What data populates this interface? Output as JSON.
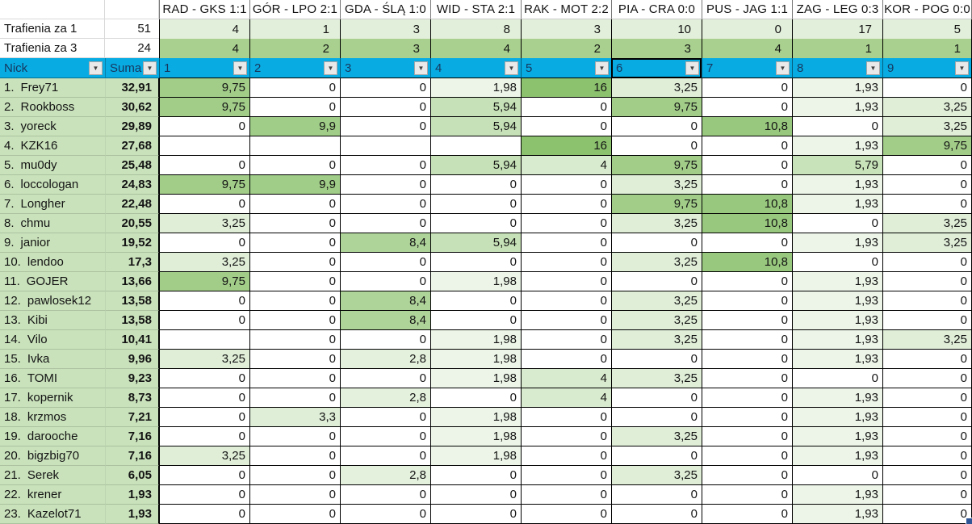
{
  "colors": {
    "filter_header_bg": "#08ACE3",
    "filter_header_text": "#17375E",
    "name_column_bg": "#C9E2BB",
    "stat_row1_bg": "#E2EFDA",
    "stat_row2_bg": "#A9D08E",
    "fill_handle": "#2F5597",
    "dropdown_bg": "#E9E9E9"
  },
  "scale": {
    "zero_color": "#FFFFFF",
    "max_color": "#8CC26E",
    "max_value": 12
  },
  "matches": [
    "RAD - GKS 1:1",
    "GÓR - LPO 2:1",
    "GDA - ŚLĄ 1:0",
    "WID - STA 2:1",
    "RAK - MOT 2:2",
    "PIA - CRA 0:0",
    "PUS - JAG 1:1",
    "ZAG - LEG 0:3",
    "KOR - POG 0:0"
  ],
  "stat_rows": [
    {
      "label": "Trafienia za 1",
      "total": "51",
      "values": [
        "4",
        "1",
        "3",
        "8",
        "3",
        "10",
        "0",
        "17",
        "5"
      ]
    },
    {
      "label": "Trafienia za 3",
      "total": "24",
      "values": [
        "4",
        "2",
        "3",
        "4",
        "2",
        "3",
        "4",
        "1",
        "1"
      ]
    }
  ],
  "filter_row": {
    "nick_label": "Nick",
    "suma_label": "Suma",
    "columns": [
      "1",
      "2",
      "3",
      "4",
      "5",
      "6",
      "7",
      "8",
      "9"
    ],
    "selected_column": "6",
    "dropdown_glyph": "▼"
  },
  "players": [
    {
      "rank": "1.",
      "name": "Frey71",
      "suma": "32,91",
      "values": [
        "9,75",
        "0",
        "0",
        "1,98",
        "16",
        "3,25",
        "0",
        "1,93",
        "0"
      ]
    },
    {
      "rank": "2.",
      "name": "Rookboss",
      "suma": "30,62",
      "values": [
        "9,75",
        "0",
        "0",
        "5,94",
        "0",
        "9,75",
        "0",
        "1,93",
        "3,25"
      ]
    },
    {
      "rank": "3.",
      "name": "yoreck",
      "suma": "29,89",
      "values": [
        "0",
        "9,9",
        "0",
        "5,94",
        "0",
        "0",
        "10,8",
        "0",
        "3,25"
      ]
    },
    {
      "rank": "4.",
      "name": "KZK16",
      "suma": "27,68",
      "values": [
        null,
        null,
        null,
        null,
        "16",
        "0",
        "0",
        "1,93",
        "9,75"
      ]
    },
    {
      "rank": "5.",
      "name": "mu0dy",
      "suma": "25,48",
      "values": [
        "0",
        "0",
        "0",
        "5,94",
        "4",
        "9,75",
        "0",
        "5,79",
        "0"
      ]
    },
    {
      "rank": "6.",
      "name": "loccologan",
      "suma": "24,83",
      "values": [
        "9,75",
        "9,9",
        "0",
        "0",
        "0",
        "3,25",
        "0",
        "1,93",
        "0"
      ]
    },
    {
      "rank": "7.",
      "name": "Longher",
      "suma": "22,48",
      "values": [
        "0",
        "0",
        "0",
        "0",
        "0",
        "9,75",
        "10,8",
        "1,93",
        "0"
      ]
    },
    {
      "rank": "8.",
      "name": "chmu",
      "suma": "20,55",
      "values": [
        "3,25",
        "0",
        "0",
        "0",
        "0",
        "3,25",
        "10,8",
        "0",
        "3,25"
      ]
    },
    {
      "rank": "9.",
      "name": "janior",
      "suma": "19,52",
      "values": [
        "0",
        "0",
        "8,4",
        "5,94",
        "0",
        "0",
        "0",
        "1,93",
        "3,25"
      ]
    },
    {
      "rank": "10.",
      "name": "lendoo",
      "suma": "17,3",
      "values": [
        "3,25",
        "0",
        "0",
        "0",
        "0",
        "3,25",
        "10,8",
        "0",
        "0"
      ]
    },
    {
      "rank": "11.",
      "name": "GOJER",
      "suma": "13,66",
      "values": [
        "9,75",
        "0",
        "0",
        "1,98",
        "0",
        "0",
        "0",
        "1,93",
        "0"
      ]
    },
    {
      "rank": "12.",
      "name": "pawlosek12",
      "suma": "13,58",
      "values": [
        "0",
        "0",
        "8,4",
        "0",
        "0",
        "3,25",
        "0",
        "1,93",
        "0"
      ]
    },
    {
      "rank": "13.",
      "name": "Kibi",
      "suma": "13,58",
      "values": [
        "0",
        "0",
        "8,4",
        "0",
        "0",
        "3,25",
        "0",
        "1,93",
        "0"
      ]
    },
    {
      "rank": "14.",
      "name": "Vilo",
      "suma": "10,41",
      "values": [
        null,
        "0",
        "0",
        "1,98",
        "0",
        "3,25",
        "0",
        "1,93",
        "3,25"
      ]
    },
    {
      "rank": "15.",
      "name": "Ivka",
      "suma": "9,96",
      "values": [
        "3,25",
        "0",
        "2,8",
        "1,98",
        "0",
        "0",
        "0",
        "1,93",
        "0"
      ]
    },
    {
      "rank": "16.",
      "name": "TOMI",
      "suma": "9,23",
      "values": [
        "0",
        "0",
        "0",
        "1,98",
        "4",
        "3,25",
        "0",
        "0",
        "0"
      ]
    },
    {
      "rank": "17.",
      "name": "kopernik",
      "suma": "8,73",
      "values": [
        "0",
        "0",
        "2,8",
        "0",
        "4",
        "0",
        "0",
        "1,93",
        "0"
      ]
    },
    {
      "rank": "18.",
      "name": "krzmos",
      "suma": "7,21",
      "values": [
        "0",
        "3,3",
        "0",
        "1,98",
        "0",
        "0",
        "0",
        "1,93",
        "0"
      ]
    },
    {
      "rank": "19.",
      "name": "darooche",
      "suma": "7,16",
      "values": [
        "0",
        "0",
        "0",
        "1,98",
        "0",
        "3,25",
        "0",
        "1,93",
        "0"
      ]
    },
    {
      "rank": "20.",
      "name": "bigzbig70",
      "suma": "7,16",
      "values": [
        "3,25",
        "0",
        "0",
        "1,98",
        "0",
        "0",
        "0",
        "1,93",
        "0"
      ]
    },
    {
      "rank": "21.",
      "name": "Serek",
      "suma": "6,05",
      "values": [
        "0",
        "0",
        "2,8",
        "0",
        "0",
        "3,25",
        "0",
        "0",
        "0"
      ]
    },
    {
      "rank": "22.",
      "name": "krener",
      "suma": "1,93",
      "values": [
        "0",
        "0",
        "0",
        "0",
        "0",
        "0",
        "0",
        "1,93",
        "0"
      ]
    },
    {
      "rank": "23.",
      "name": "Kazelot71",
      "suma": "1,93",
      "values": [
        "0",
        "0",
        "0",
        "0",
        "0",
        "0",
        "0",
        "1,93",
        "0"
      ]
    }
  ]
}
